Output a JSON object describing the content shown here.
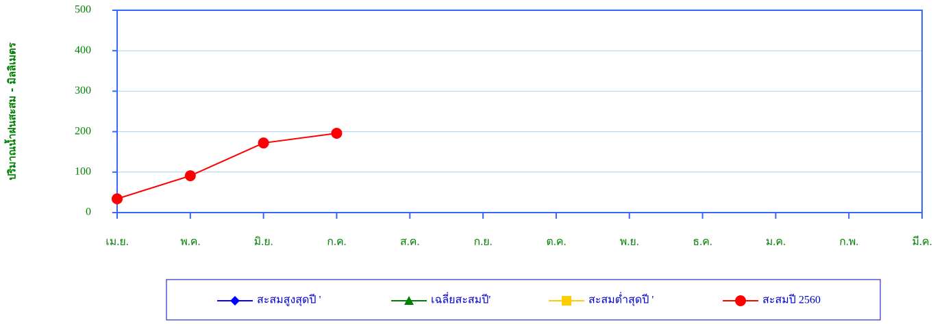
{
  "chart_data": {
    "type": "line",
    "y_label": "ปริมาณน้ำฝนสะสม - มิลลิเมตร",
    "categories": [
      "เม.ย.",
      "พ.ค.",
      "มิ.ย.",
      "ก.ค.",
      "ส.ค.",
      "ก.ย.",
      "ต.ค.",
      "พ.ย.",
      "ธ.ค.",
      "ม.ค.",
      "ก.พ.",
      "มี.ค."
    ],
    "series": [
      {
        "name": "สะสมสูงสุดปี '",
        "color": "#0000ff",
        "marker": "diamond",
        "values": [
          null,
          null,
          null,
          null,
          null,
          null,
          null,
          null,
          null,
          null,
          null,
          null
        ]
      },
      {
        "name": "เฉลี่ยสะสมปี'",
        "color": "#008000",
        "marker": "triangle",
        "values": [
          null,
          null,
          null,
          null,
          null,
          null,
          null,
          null,
          null,
          null,
          null,
          null
        ]
      },
      {
        "name": "สะสมต่ำสุดปี '",
        "color": "#ffcc00",
        "marker": "square",
        "values": [
          null,
          null,
          null,
          null,
          null,
          null,
          null,
          null,
          null,
          null,
          null,
          null
        ]
      },
      {
        "name": "สะสมปี 2560",
        "color": "#ff0000",
        "marker": "circle",
        "values": [
          34,
          91,
          172,
          196,
          null,
          null,
          null,
          null,
          null,
          null,
          null,
          null
        ]
      }
    ],
    "ylim": [
      0,
      500
    ],
    "yticks": [
      0,
      100,
      200,
      300,
      400,
      500
    ],
    "grid": true
  }
}
